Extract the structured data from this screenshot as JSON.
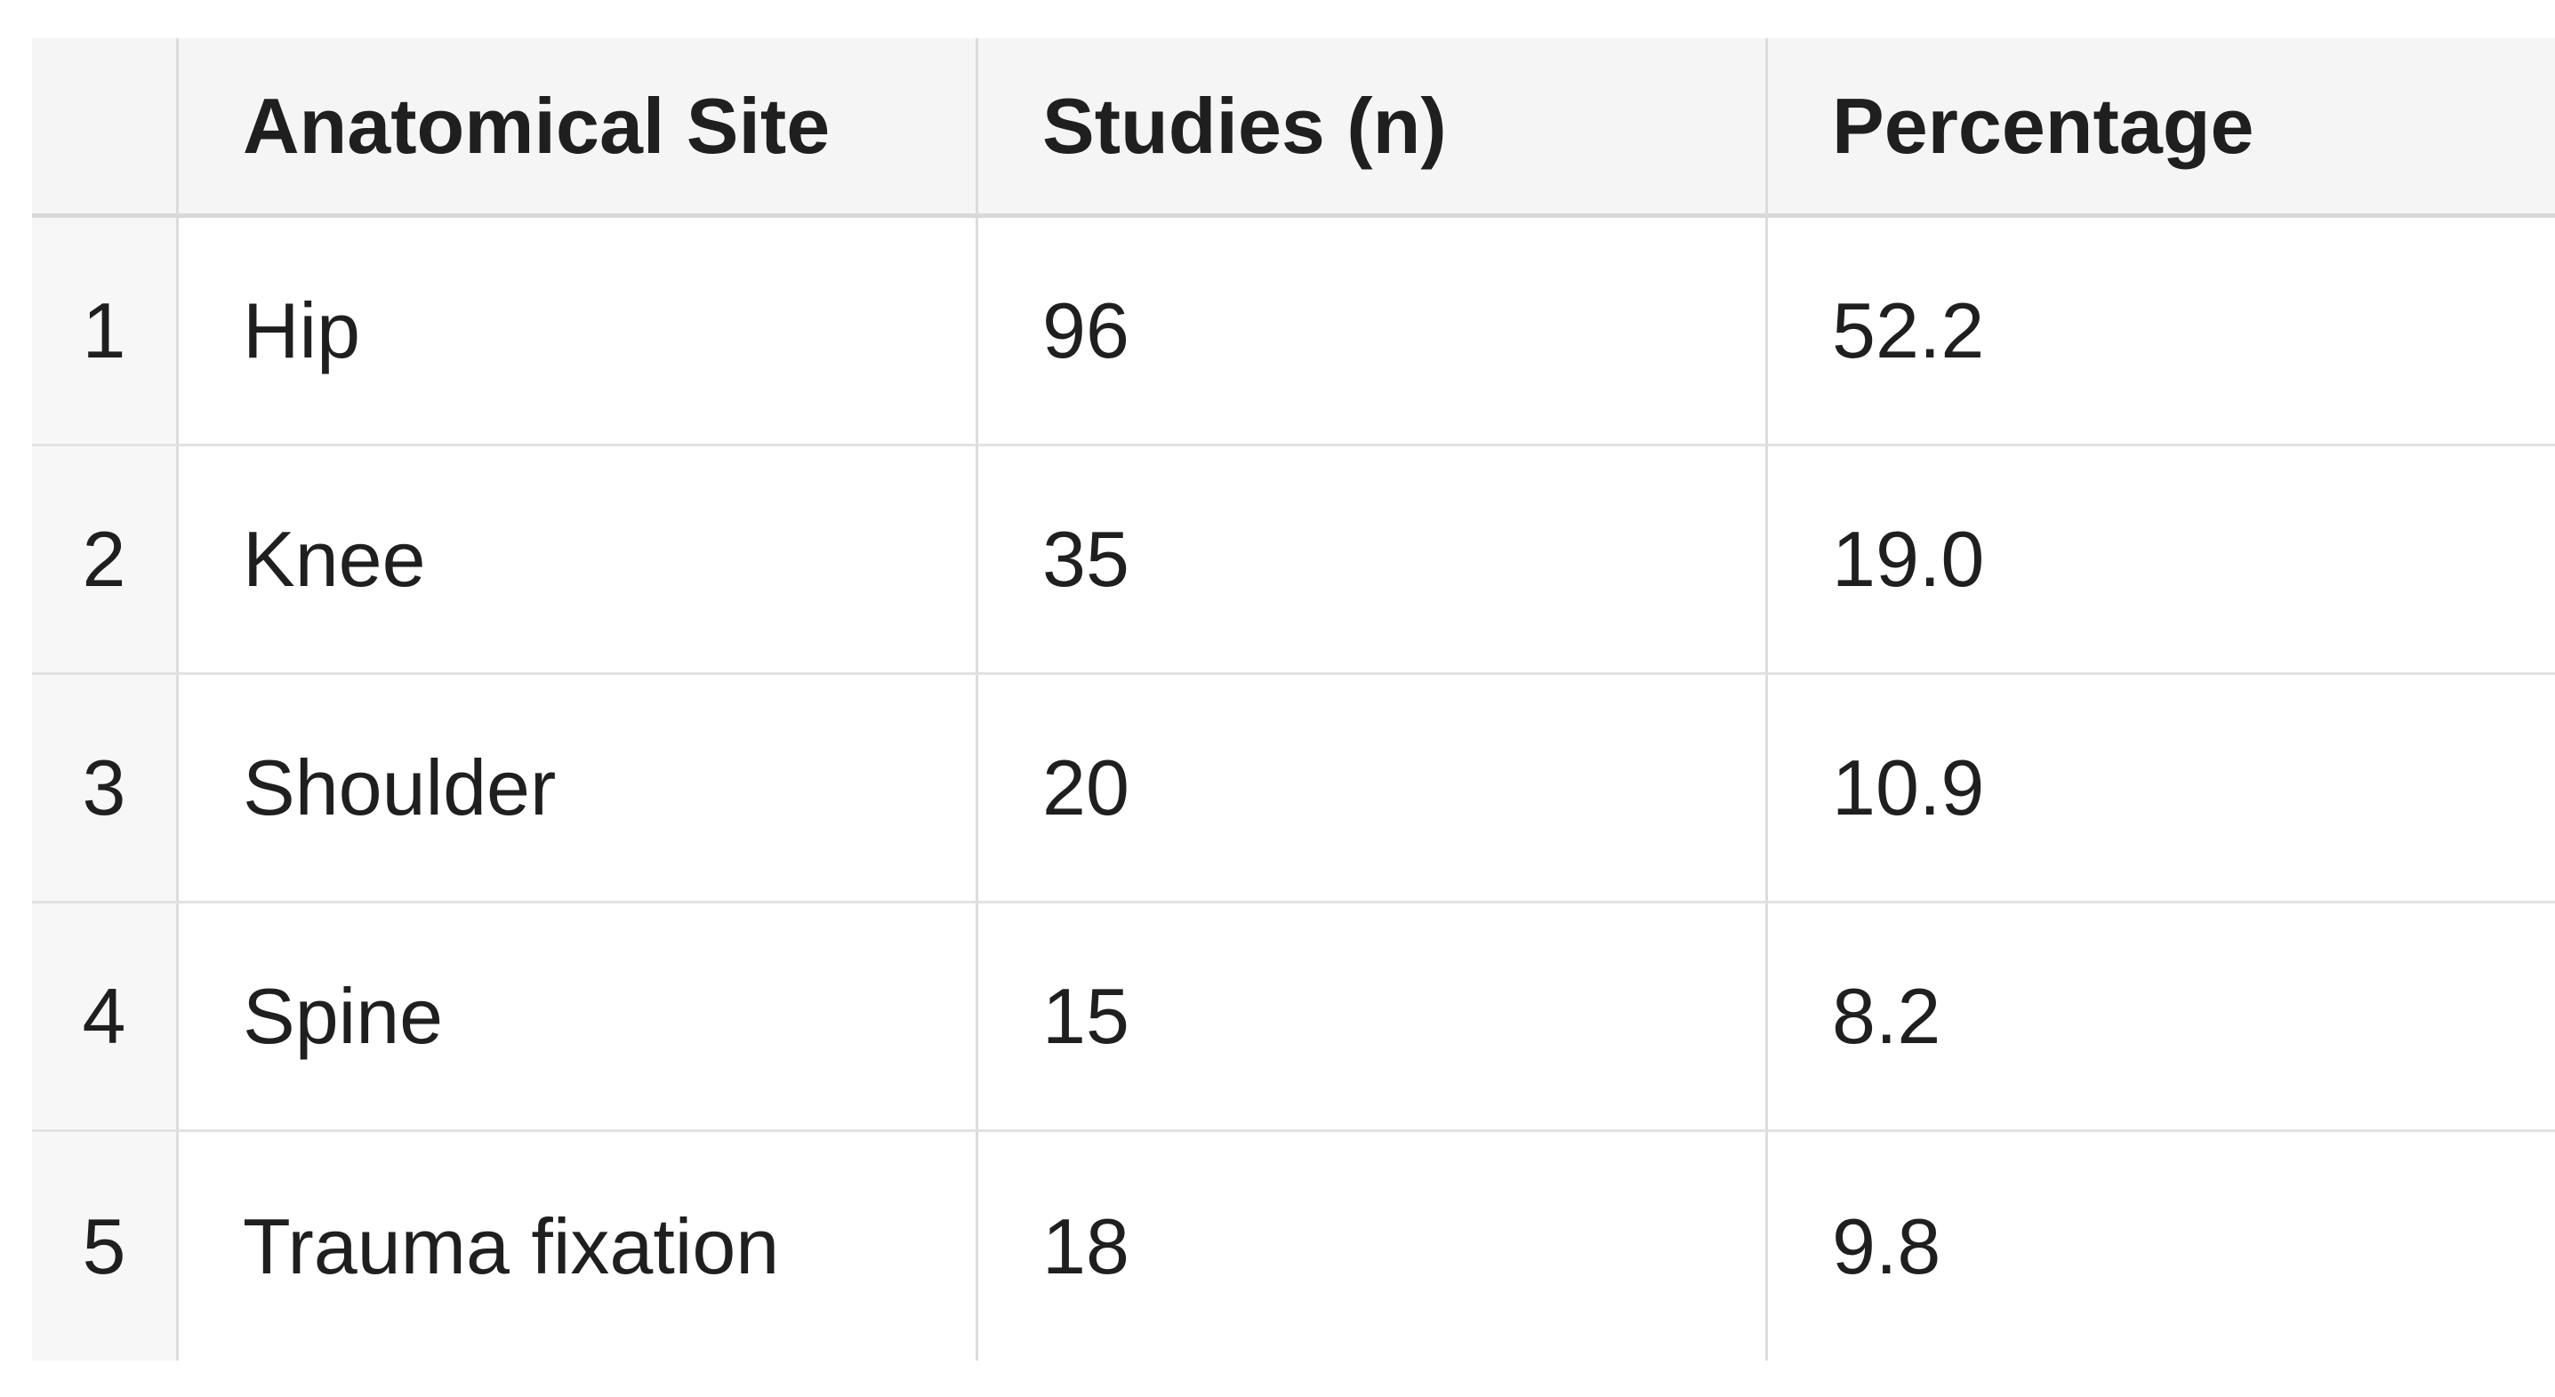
{
  "chart_data": {
    "type": "table",
    "title": "",
    "columns": [
      {
        "key": "index",
        "label": ""
      },
      {
        "key": "site",
        "label": "Anatomical Site"
      },
      {
        "key": "studies",
        "label": "Studies (n)"
      },
      {
        "key": "percentage",
        "label": "Percentage"
      }
    ],
    "rows": [
      {
        "index": "1",
        "site": "Hip",
        "studies": "96",
        "percentage": "52.2"
      },
      {
        "index": "2",
        "site": "Knee",
        "studies": "35",
        "percentage": "19.0"
      },
      {
        "index": "3",
        "site": "Shoulder",
        "studies": "20",
        "percentage": "10.9"
      },
      {
        "index": "4",
        "site": "Spine",
        "studies": "15",
        "percentage": "8.2"
      },
      {
        "index": "5",
        "site": "Trauma fixation",
        "studies": "18",
        "percentage": "9.8"
      }
    ]
  },
  "colors": {
    "header_bg": "#f5f5f6",
    "index_col_bg": "#f7f7f7",
    "cell_bg": "#ffffff",
    "border": "#e2e2e2",
    "header_border": "#d8d8d8",
    "col_border": "#dcdcdc",
    "text": "#1f1f1f",
    "page_bg": "#ffffff"
  }
}
